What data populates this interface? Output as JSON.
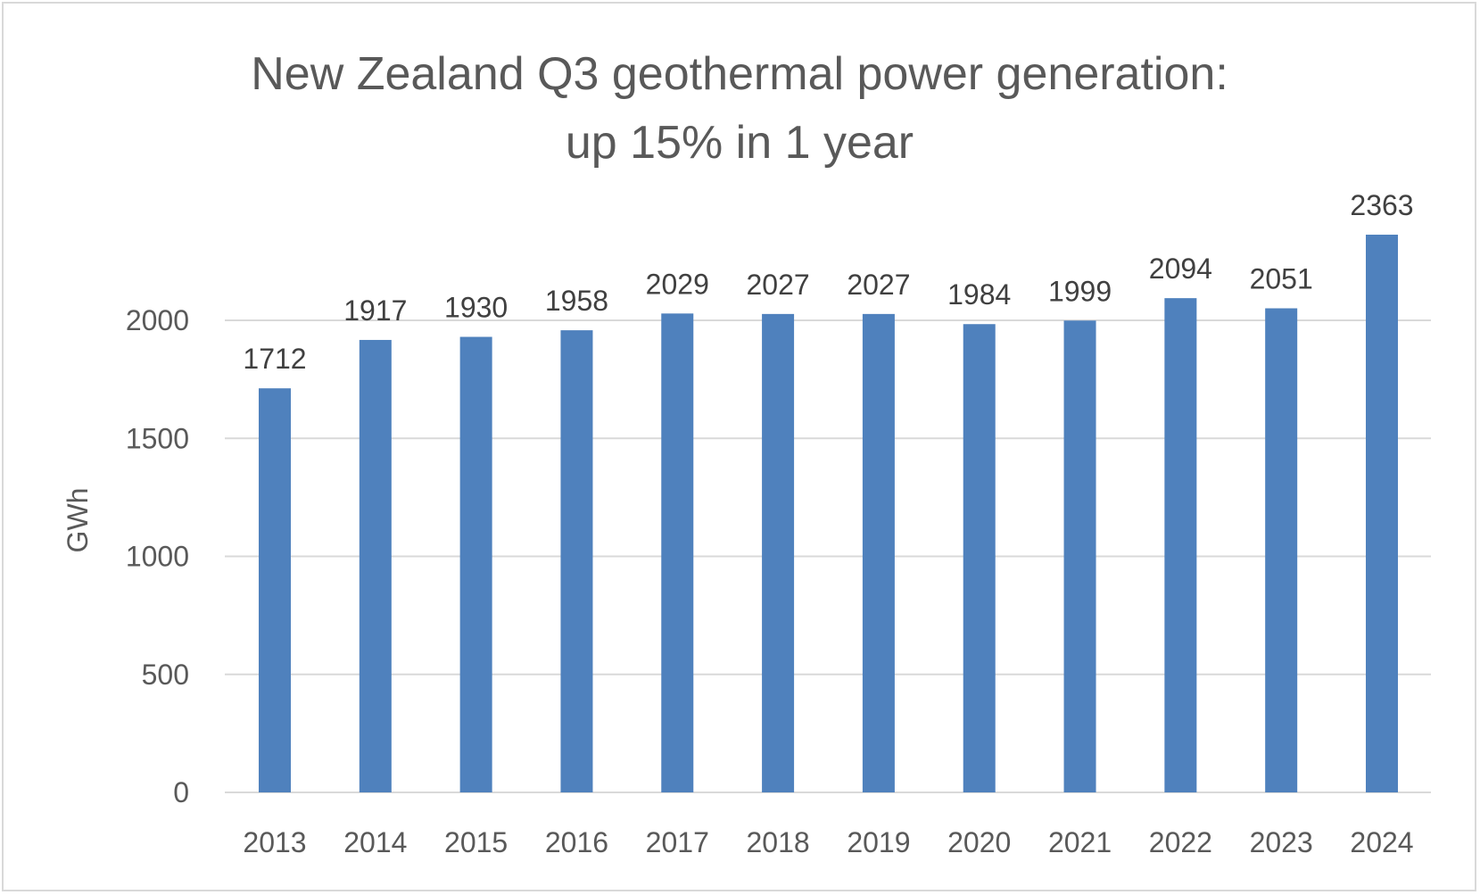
{
  "chart_data": {
    "type": "bar",
    "title": [
      "New Zealand Q3 geothermal power generation:",
      "up 15% in 1 year"
    ],
    "xlabel": "",
    "ylabel": "GWh",
    "categories": [
      "2013",
      "2014",
      "2015",
      "2016",
      "2017",
      "2018",
      "2019",
      "2020",
      "2021",
      "2022",
      "2023",
      "2024"
    ],
    "values": [
      1712,
      1917,
      1930,
      1958,
      2029,
      2027,
      2027,
      1984,
      1999,
      2094,
      2051,
      2363
    ],
    "ylim": [
      0,
      2500
    ],
    "yticks": [
      0,
      500,
      1000,
      1500,
      2000
    ],
    "grid": true,
    "data_labels": true,
    "bar_color": "#4f81bd",
    "grid_color": "#d9d9d9"
  }
}
